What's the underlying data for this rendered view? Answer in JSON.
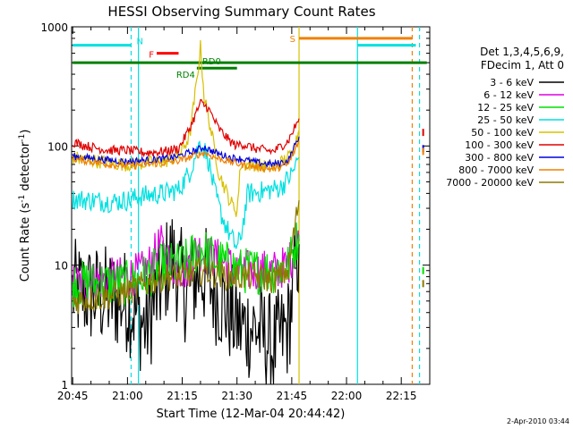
{
  "chart_data": {
    "type": "line",
    "title": "HESSI Observing Summary Count Rates",
    "xlabel": "Start Time (12-Mar-04 20:44:42)",
    "ylabel_main": "Count Rate (s",
    "ylabel_sup1": "-1",
    "ylabel_mid": " detector",
    "ylabel_sup2": "-1",
    "ylabel_end": ")",
    "yscale": "log",
    "ylim": [
      1,
      1000
    ],
    "xlim": [
      "20:45",
      "22:22"
    ],
    "x_ticks": [
      "20:45",
      "21:00",
      "21:15",
      "21:30",
      "21:45",
      "22:00",
      "22:15"
    ],
    "y_ticks": [
      "1",
      "10",
      "100",
      "1000"
    ],
    "footer_date": "2-Apr-2010 03:44",
    "legend": {
      "header1": "Det 1,3,4,5,6,9,",
      "header2": "FDecim 1, Att 0",
      "entries": [
        {
          "label": "3 - 6 keV",
          "color": "#000000"
        },
        {
          "label": "6 - 12 keV",
          "color": "#e000e0"
        },
        {
          "label": "12 - 25 keV",
          "color": "#00e000"
        },
        {
          "label": "25 - 50 keV",
          "color": "#00e0e0"
        },
        {
          "label": "50 - 100 keV",
          "color": "#d8c000"
        },
        {
          "label": "100 - 300 keV",
          "color": "#e00000"
        },
        {
          "label": "300 - 800 keV",
          "color": "#0000e0"
        },
        {
          "label": "800 - 7000 keV",
          "color": "#f08000"
        },
        {
          "label": "7000 - 20000 keV",
          "color": "#8b7a00"
        }
      ]
    },
    "flags": [
      {
        "label": "N",
        "color": "#00e0e0",
        "y": 700,
        "x_start": "20:45",
        "x_end": "21:01"
      },
      {
        "label": "F",
        "color": "#ff0000",
        "y": 600,
        "x_start": "21:08",
        "x_end": "21:14"
      },
      {
        "label": "RD0",
        "color": "#008000",
        "y": 450,
        "x_start": "21:19",
        "x_end": "21:30"
      },
      {
        "label": "RD4",
        "color": "#008000",
        "y": 500,
        "x_start": "20:45",
        "x_end": "22:22"
      },
      {
        "label": "S",
        "color": "#f08000",
        "y": 800,
        "x_start": "21:47",
        "x_end": "22:18"
      }
    ],
    "extra_flag_segments": [
      {
        "color": "#00e0e0",
        "y": 700,
        "x_start": "22:03",
        "x_end": "22:19"
      }
    ],
    "vertical_markers": [
      {
        "color": "#00e0e0",
        "style": "dashed",
        "x": "21:01"
      },
      {
        "color": "#00e0e0",
        "style": "solid",
        "x": "21:03"
      },
      {
        "color": "#d8c000",
        "style": "solid",
        "x": "21:47"
      },
      {
        "color": "#00e0e0",
        "style": "solid",
        "x": "22:03"
      },
      {
        "color": "#f08000",
        "style": "dashed",
        "x": "22:18"
      },
      {
        "color": "#00e0e0",
        "style": "dashed",
        "x": "22:20"
      }
    ],
    "series": [
      {
        "name": "3 - 6 keV",
        "color": "#000000",
        "noise": 0.45,
        "points": [
          [
            "20:45",
            6
          ],
          [
            "21:00",
            5
          ],
          [
            "21:05",
            3
          ],
          [
            "21:10",
            8
          ],
          [
            "21:12",
            12
          ],
          [
            "21:16",
            6
          ],
          [
            "21:20",
            9
          ],
          [
            "21:24",
            6
          ],
          [
            "21:28",
            4
          ],
          [
            "21:31",
            3
          ],
          [
            "21:35",
            3
          ],
          [
            "21:40",
            2
          ],
          [
            "21:44",
            3
          ],
          [
            "21:47",
            15
          ]
        ]
      },
      {
        "name": "6 - 12 keV",
        "color": "#e000e0",
        "noise": 0.18,
        "points": [
          [
            "20:45",
            7
          ],
          [
            "21:00",
            8
          ],
          [
            "21:05",
            9
          ],
          [
            "21:09",
            15
          ],
          [
            "21:12",
            10
          ],
          [
            "21:16",
            9
          ],
          [
            "21:19",
            14
          ],
          [
            "21:22",
            12
          ],
          [
            "21:26",
            11
          ],
          [
            "21:30",
            9
          ],
          [
            "21:35",
            9
          ],
          [
            "21:40",
            9
          ],
          [
            "21:44",
            10
          ],
          [
            "21:47",
            16
          ]
        ]
      },
      {
        "name": "12 - 25 keV",
        "color": "#00e000",
        "noise": 0.2,
        "points": [
          [
            "20:45",
            7
          ],
          [
            "21:00",
            7
          ],
          [
            "21:05",
            8
          ],
          [
            "21:10",
            10
          ],
          [
            "21:15",
            10
          ],
          [
            "21:20",
            14
          ],
          [
            "21:24",
            11
          ],
          [
            "21:28",
            10
          ],
          [
            "21:31",
            9
          ],
          [
            "21:36",
            9
          ],
          [
            "21:40",
            9
          ],
          [
            "21:44",
            10
          ],
          [
            "21:47",
            18
          ]
        ]
      },
      {
        "name": "25 - 50 keV",
        "color": "#00e0e0",
        "noise": 0.09,
        "points": [
          [
            "20:45",
            36
          ],
          [
            "20:55",
            34
          ],
          [
            "21:00",
            35
          ],
          [
            "21:04",
            38
          ],
          [
            "21:10",
            40
          ],
          [
            "21:14",
            43
          ],
          [
            "21:17",
            60
          ],
          [
            "21:20",
            110
          ],
          [
            "21:22",
            80
          ],
          [
            "21:24",
            40
          ],
          [
            "21:26",
            25
          ],
          [
            "21:28",
            18
          ],
          [
            "21:30",
            14
          ],
          [
            "21:31",
            17
          ],
          [
            "21:33",
            40
          ],
          [
            "21:38",
            42
          ],
          [
            "21:42",
            45
          ],
          [
            "21:45",
            58
          ],
          [
            "21:47",
            80
          ]
        ]
      },
      {
        "name": "50 - 100 keV",
        "color": "#d8c000",
        "noise": 0.06,
        "points": [
          [
            "20:45",
            80
          ],
          [
            "20:55",
            72
          ],
          [
            "21:00",
            70
          ],
          [
            "21:05",
            72
          ],
          [
            "21:10",
            74
          ],
          [
            "21:14",
            82
          ],
          [
            "21:17",
            120
          ],
          [
            "21:19",
            350
          ],
          [
            "21:20",
            680
          ],
          [
            "21:21",
            260
          ],
          [
            "21:23",
            130
          ],
          [
            "21:25",
            60
          ],
          [
            "21:28",
            35
          ],
          [
            "21:30",
            28
          ],
          [
            "21:31",
            70
          ],
          [
            "21:35",
            70
          ],
          [
            "21:40",
            65
          ],
          [
            "21:45",
            85
          ],
          [
            "21:47",
            135
          ]
        ]
      },
      {
        "name": "100 - 300 keV",
        "color": "#e00000",
        "noise": 0.04,
        "points": [
          [
            "20:45",
            108
          ],
          [
            "20:50",
            98
          ],
          [
            "20:55",
            92
          ],
          [
            "21:00",
            92
          ],
          [
            "21:05",
            88
          ],
          [
            "21:10",
            90
          ],
          [
            "21:14",
            95
          ],
          [
            "21:17",
            140
          ],
          [
            "21:20",
            230
          ],
          [
            "21:22",
            210
          ],
          [
            "21:25",
            140
          ],
          [
            "21:28",
            110
          ],
          [
            "21:30",
            100
          ],
          [
            "21:31",
            105
          ],
          [
            "21:35",
            95
          ],
          [
            "21:40",
            90
          ],
          [
            "21:44",
            110
          ],
          [
            "21:47",
            170
          ]
        ]
      },
      {
        "name": "300 - 800 keV",
        "color": "#0000e0",
        "noise": 0.03,
        "points": [
          [
            "20:45",
            82
          ],
          [
            "20:55",
            76
          ],
          [
            "21:00",
            74
          ],
          [
            "21:05",
            76
          ],
          [
            "21:10",
            78
          ],
          [
            "21:14",
            82
          ],
          [
            "21:18",
            90
          ],
          [
            "21:21",
            98
          ],
          [
            "21:24",
            88
          ],
          [
            "21:28",
            80
          ],
          [
            "21:31",
            78
          ],
          [
            "21:36",
            72
          ],
          [
            "21:40",
            70
          ],
          [
            "21:44",
            75
          ],
          [
            "21:47",
            120
          ]
        ]
      },
      {
        "name": "800 - 7000 keV",
        "color": "#f08000",
        "noise": 0.03,
        "points": [
          [
            "20:45",
            78
          ],
          [
            "20:55",
            70
          ],
          [
            "21:00",
            68
          ],
          [
            "21:05",
            70
          ],
          [
            "21:10",
            72
          ],
          [
            "21:14",
            75
          ],
          [
            "21:18",
            82
          ],
          [
            "21:21",
            88
          ],
          [
            "21:24",
            80
          ],
          [
            "21:28",
            74
          ],
          [
            "21:31",
            70
          ],
          [
            "21:36",
            66
          ],
          [
            "21:40",
            64
          ],
          [
            "21:44",
            70
          ],
          [
            "21:47",
            110
          ]
        ]
      },
      {
        "name": "7000 - 20000 keV",
        "color": "#8b7a00",
        "noise": 0.12,
        "points": [
          [
            "20:45",
            5
          ],
          [
            "20:55",
            5.5
          ],
          [
            "21:00",
            6
          ],
          [
            "21:05",
            7
          ],
          [
            "21:10",
            8
          ],
          [
            "21:15",
            8
          ],
          [
            "21:20",
            9
          ],
          [
            "21:24",
            8.5
          ],
          [
            "21:28",
            8
          ],
          [
            "21:31",
            8
          ],
          [
            "21:36",
            8
          ],
          [
            "21:40",
            7.5
          ],
          [
            "21:44",
            9
          ],
          [
            "21:47",
            35
          ]
        ]
      }
    ],
    "tail_marks": [
      {
        "color": "#e00000",
        "x": "22:21",
        "y": 130
      },
      {
        "color": "#0000e0",
        "x": "22:21",
        "y": 95
      },
      {
        "color": "#f08000",
        "x": "22:21",
        "y": 90
      },
      {
        "color": "#00e000",
        "x": "22:21",
        "y": 9
      },
      {
        "color": "#8b7a00",
        "x": "22:21",
        "y": 7
      }
    ]
  }
}
